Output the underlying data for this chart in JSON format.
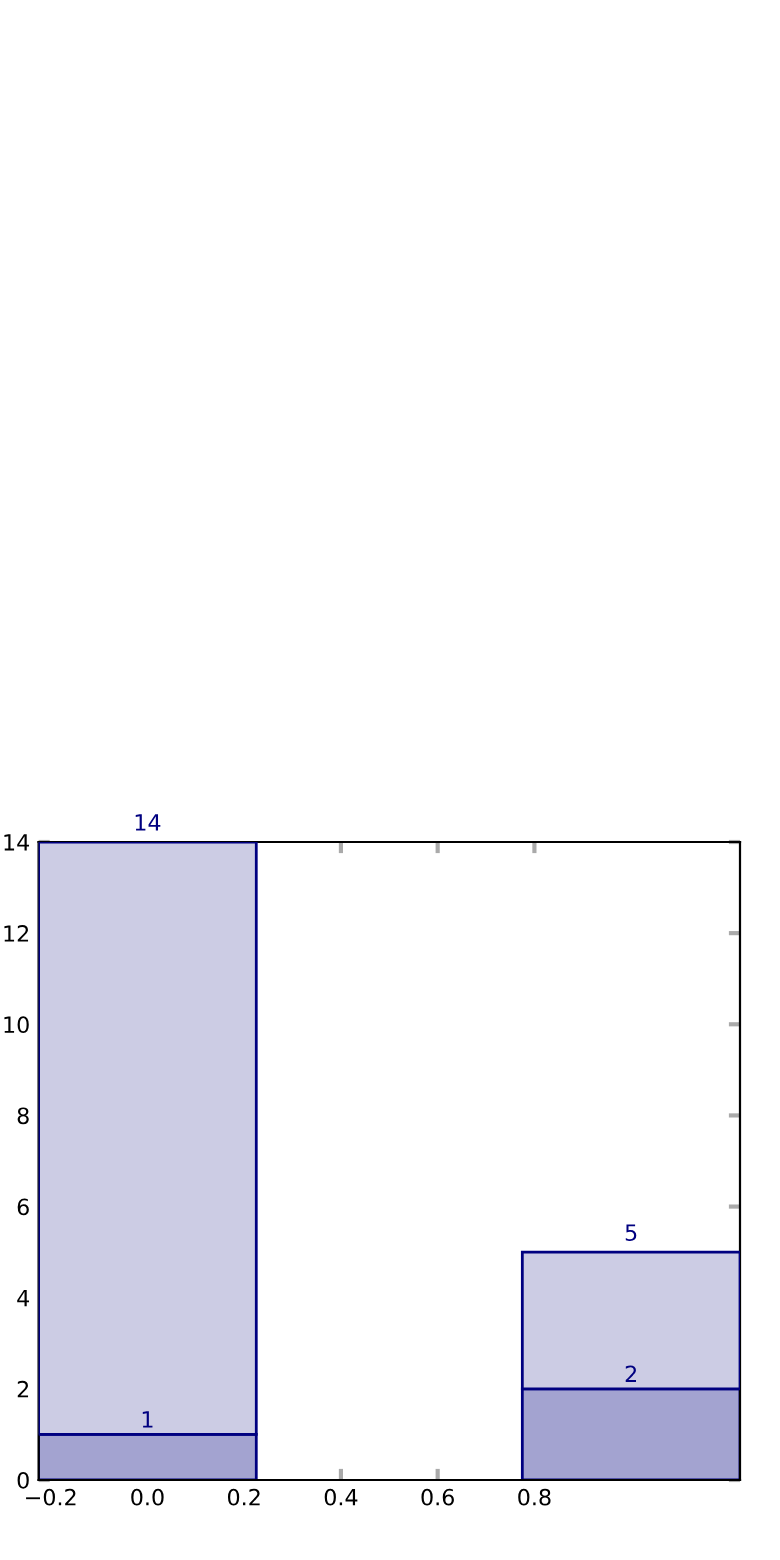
{
  "chart_data": {
    "type": "bar",
    "stacked": true,
    "x": [
      0,
      1
    ],
    "series": [
      {
        "color": "#a3a3d0",
        "values": [
          1,
          2
        ],
        "value_labels": [
          "1",
          "2"
        ]
      },
      {
        "color": "#cccce4",
        "values": [
          13,
          3
        ]
      }
    ],
    "totals": [
      "14",
      "5"
    ],
    "xlim": [
      -0.225,
      1.225
    ],
    "xticks": [
      -0.2,
      {
        "value": 0,
        "label": "0.0"
      },
      0.2,
      0.4,
      0.6,
      0.8
    ],
    "ylim": [
      0,
      14
    ],
    "yticks": [
      0,
      2,
      4,
      6,
      8,
      10,
      12,
      14
    ],
    "grid": false,
    "legend": false
  }
}
